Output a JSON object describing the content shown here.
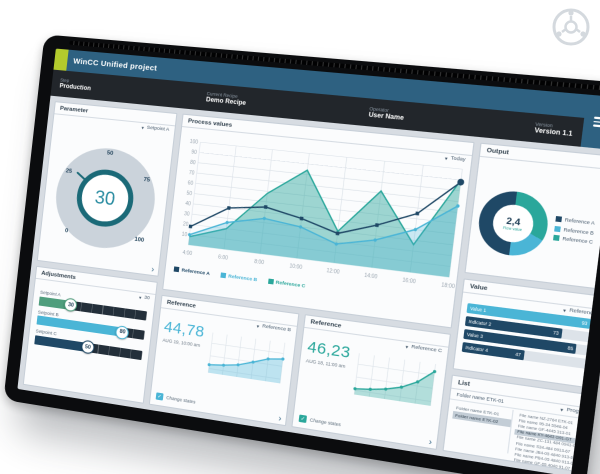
{
  "palette": {
    "navy": "#1f4866",
    "cyan": "#4ab5d6",
    "teal": "#2aa79b",
    "green": "#4f9e7d",
    "header_blue": "#2e6181",
    "logo_green": "#b3cb2d"
  },
  "header": {
    "title": "WinCC Unified project",
    "stats": [
      {
        "label": "Step",
        "value": "Production"
      },
      {
        "label": "Current Recipe",
        "value": "Demo Recipe"
      },
      {
        "label": "Operator",
        "value": "User Name"
      },
      {
        "label": "Version",
        "value": "Version 1.1"
      }
    ]
  },
  "parameter": {
    "title": "Parameter",
    "dropdown": "Setpoint A",
    "value": 30,
    "ticks": [
      "0",
      "25",
      "50",
      "75",
      "100"
    ]
  },
  "adjustments": {
    "title": "Adjustments",
    "dropdown": "30",
    "sliders": [
      {
        "label": "Setpoint A",
        "value": 30,
        "color": "#4f9e7d"
      },
      {
        "label": "Setpoint B",
        "value": 80,
        "color": "#4ab5d6"
      },
      {
        "label": "Setpoint C",
        "value": 50,
        "color": "#1f4866"
      }
    ]
  },
  "process": {
    "title": "Process values",
    "dropdown": "Today",
    "chart": {
      "type": "line",
      "categories": [
        "4:00",
        "6:00",
        "8:00",
        "10:00",
        "12:00",
        "14:00",
        "16:00",
        "18:00"
      ],
      "y_ticks": [
        10,
        20,
        30,
        40,
        50,
        60,
        70,
        80,
        90,
        100
      ],
      "ylim": [
        0,
        100
      ],
      "series": [
        {
          "name": "Reference A",
          "color": "#1f4866",
          "marker": "square",
          "area": false,
          "values": [
            18,
            40,
            45,
            38,
            28,
            40,
            55,
            88
          ]
        },
        {
          "name": "Reference B",
          "color": "#4ab5d6",
          "marker": "circle",
          "area": true,
          "fill_opacity": 0.28,
          "values": [
            10,
            26,
            34,
            30,
            18,
            26,
            40,
            66
          ]
        },
        {
          "name": "Reference C",
          "color": "#2aa79b",
          "marker": "none",
          "area": true,
          "fill_opacity": 0.45,
          "values": [
            8,
            20,
            58,
            84,
            30,
            72,
            26,
            90
          ]
        }
      ]
    },
    "legend": [
      {
        "label": "Reference A",
        "color": "#1f4866"
      },
      {
        "label": "Reference B",
        "color": "#4ab5d6"
      },
      {
        "label": "Reference C",
        "color": "#2aa79b"
      }
    ]
  },
  "output": {
    "title": "Output",
    "dropdown": "All",
    "center_value": "2,4",
    "center_label": "Flow value",
    "segments": [
      {
        "name": "Reference C",
        "value": 32,
        "color": "#2aa79b"
      },
      {
        "name": "Reference B",
        "value": 18,
        "color": "#4ab5d6"
      },
      {
        "name": "Reference A",
        "value": 50,
        "color": "#1f4866"
      }
    ],
    "legend": [
      {
        "label": "Reference A",
        "color": "#1f4866"
      },
      {
        "label": "Reference B",
        "color": "#4ab5d6"
      },
      {
        "label": "Reference C",
        "color": "#2aa79b"
      }
    ]
  },
  "value_panel": {
    "title": "Value",
    "dropdown": "Reference A",
    "bars": [
      {
        "label": "Value 1",
        "value": 93,
        "color": "#4ab5d6"
      },
      {
        "label": "Indicator 2",
        "value": 73,
        "color": "#1f4866"
      },
      {
        "label": "Value 3",
        "value": 85,
        "color": "#1f4866"
      },
      {
        "label": "Indicator 4",
        "value": 47,
        "color": "#1f4866"
      }
    ]
  },
  "reference1": {
    "title": "Reference",
    "dropdown": "Reference B",
    "value": "44,78",
    "date": "AUG 19, 10:00 am",
    "checkbox": "Change states",
    "color": "#4ab5d6",
    "spark": [
      20,
      24,
      30,
      42,
      55,
      60
    ]
  },
  "reference2": {
    "title": "Reference",
    "dropdown": "Reference C",
    "value": "46,23",
    "date": "AUG 18, 11:00 am",
    "checkbox": "Change states",
    "color": "#2aa79b",
    "spark": [
      14,
      18,
      24,
      34,
      52,
      82
    ]
  },
  "list": {
    "title": "List",
    "path": "Folder name ETK-01",
    "dropdown": "Program",
    "folders": [
      {
        "label": "Folder name ETK-01",
        "selected": false
      },
      {
        "label": "Folder name ETK-02",
        "selected": true
      }
    ],
    "files": [
      {
        "label": "File name NZ-2764 ETK-01",
        "selected": false
      },
      {
        "label": "File name 95-34 5546-04",
        "selected": false
      },
      {
        "label": "File name GF-4445 313-01",
        "selected": false
      },
      {
        "label": "File name KY-4643 G91-GT",
        "selected": true
      },
      {
        "label": "File name ZC-131 484 0941-G7",
        "selected": false
      },
      {
        "label": "File name S34-484 0913-67",
        "selected": false
      },
      {
        "label": "File name JB4-05 4840 913-6F",
        "selected": false
      },
      {
        "label": "File name PB4-05 4840 913-02",
        "selected": false
      },
      {
        "label": "File name GF-65 4040 91-07",
        "selected": false
      }
    ]
  }
}
